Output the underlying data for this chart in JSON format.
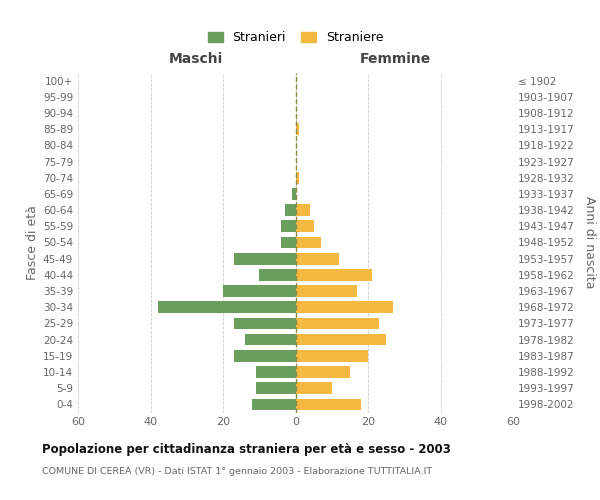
{
  "age_groups": [
    "100+",
    "95-99",
    "90-94",
    "85-89",
    "80-84",
    "75-79",
    "70-74",
    "65-69",
    "60-64",
    "55-59",
    "50-54",
    "45-49",
    "40-44",
    "35-39",
    "30-34",
    "25-29",
    "20-24",
    "15-19",
    "10-14",
    "5-9",
    "0-4"
  ],
  "birth_years": [
    "≤ 1902",
    "1903-1907",
    "1908-1912",
    "1913-1917",
    "1918-1922",
    "1923-1927",
    "1928-1932",
    "1933-1937",
    "1938-1942",
    "1943-1947",
    "1948-1952",
    "1953-1957",
    "1958-1962",
    "1963-1967",
    "1968-1972",
    "1973-1977",
    "1978-1982",
    "1983-1987",
    "1988-1992",
    "1993-1997",
    "1998-2002"
  ],
  "maschi": [
    0,
    0,
    0,
    0,
    0,
    0,
    0,
    1,
    3,
    4,
    4,
    17,
    10,
    20,
    38,
    17,
    14,
    17,
    11,
    11,
    12
  ],
  "femmine": [
    0,
    0,
    0,
    1,
    0,
    0,
    1,
    0,
    4,
    5,
    7,
    12,
    21,
    17,
    27,
    23,
    25,
    20,
    15,
    10,
    18
  ],
  "color_maschi": "#6a9e5e",
  "color_femmine": "#f5b942",
  "color_center_line": "#8a8a40",
  "title": "Popolazione per cittadinanza straniera per età e sesso - 2003",
  "subtitle": "COMUNE DI CEREA (VR) - Dati ISTAT 1° gennaio 2003 - Elaborazione TUTTITALIA.IT",
  "header_left": "Maschi",
  "header_right": "Femmine",
  "ylabel_left": "Fasce di età",
  "ylabel_right": "Anni di nascita",
  "legend_maschi": "Stranieri",
  "legend_femmine": "Straniere",
  "xlim": 60,
  "xtick_positions": [
    -60,
    -40,
    -20,
    0,
    20,
    40,
    60
  ],
  "xtick_labels": [
    "60",
    "40",
    "20",
    "0",
    "20",
    "40",
    "60"
  ],
  "background_color": "#ffffff",
  "grid_color": "#cccccc",
  "text_color": "#666666",
  "header_color": "#444444",
  "title_color": "#111111",
  "subtitle_color": "#666666"
}
